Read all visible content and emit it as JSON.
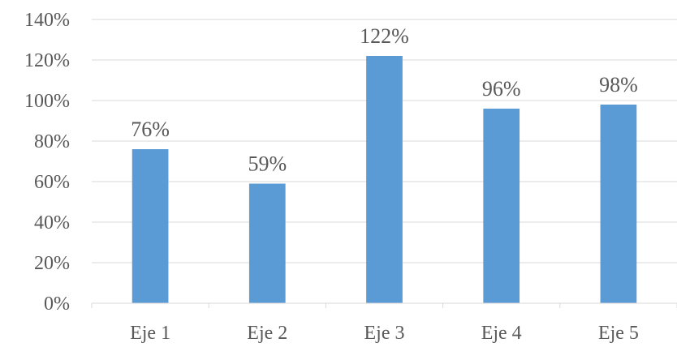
{
  "chart_data": {
    "type": "bar",
    "categories": [
      "Eje 1",
      "Eje 2",
      "Eje 3",
      "Eje 4",
      "Eje 5"
    ],
    "values": [
      76,
      59,
      122,
      96,
      98
    ],
    "data_labels": [
      "76%",
      "59%",
      "122%",
      "96%",
      "98%"
    ],
    "y_ticks": [
      "0%",
      "20%",
      "40%",
      "60%",
      "80%",
      "100%",
      "120%",
      "140%"
    ],
    "ylim": [
      0,
      140
    ],
    "y_tick_step": 20,
    "grid": true,
    "legend": "none",
    "bar_color": "#5B9BD5",
    "grid_color": "#D9D9D9",
    "text_color": "#595959"
  }
}
